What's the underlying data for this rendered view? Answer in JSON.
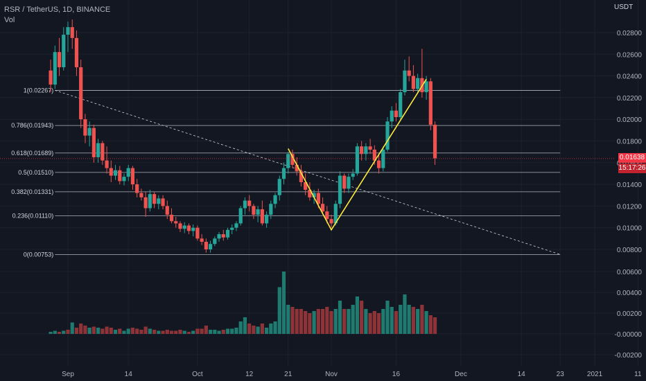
{
  "header": {
    "symbol": "RSR / TetherUS, 1D, BINANCE",
    "volume_label": "Vol",
    "currency": "USDT"
  },
  "price_tag": {
    "price": "0.01638",
    "countdown": "15:17:26"
  },
  "colors": {
    "bg": "#131722",
    "up": "#26a69a",
    "down": "#ef5350",
    "trend": "#ffeb3b",
    "fib": "#b2b5be"
  },
  "chart_data": {
    "type": "candlestick",
    "y_axis": {
      "ticks": [
        "0.02800",
        "0.02600",
        "0.02400",
        "0.02200",
        "0.02000",
        "0.01800",
        "0.01600",
        "0.01400",
        "0.01200",
        "0.01000",
        "0.00800"
      ],
      "range": [
        0.007,
        0.0293
      ]
    },
    "volume_axis": {
      "ticks": [
        "0.00600",
        "0.00400",
        "0.00200",
        "-0.00000",
        "-0.00200"
      ]
    },
    "x_axis": {
      "ticks": [
        "Sep",
        "14",
        "Oct",
        "12",
        "21",
        "Nov",
        "16",
        "Dec",
        "14",
        "23",
        "2021",
        "11"
      ],
      "tick_days": [
        0,
        14,
        30,
        42,
        51,
        61,
        76,
        91,
        105,
        114,
        122,
        132
      ]
    },
    "fib_levels": [
      {
        "label": "1(0.02267)",
        "value": 0.02267
      },
      {
        "label": "0.786(0.01943)",
        "value": 0.01943
      },
      {
        "label": "0.618(0.01689)",
        "value": 0.01689
      },
      {
        "label": "0.5(0.01510)",
        "value": 0.0151
      },
      {
        "label": "0.382(0.01331)",
        "value": 0.01331
      },
      {
        "label": "0.236(0.01110)",
        "value": 0.0111
      },
      {
        "label": "0(0.00753)",
        "value": 0.00753
      }
    ],
    "fib_range_days": [
      -3,
      114
    ],
    "dashed_line": [
      [
        -3,
        0.02267
      ],
      [
        114,
        0.00753
      ]
    ],
    "trend_lines": [
      [
        [
          51,
          0.0173
        ],
        [
          61,
          0.0098
        ],
        [
          83,
          0.0237
        ]
      ]
    ],
    "candles": [
      [
        -4,
        0.0245,
        0.0255,
        0.0225,
        0.0232
      ],
      [
        -3,
        0.0232,
        0.0268,
        0.0228,
        0.0262
      ],
      [
        -2,
        0.0262,
        0.0275,
        0.024,
        0.0248
      ],
      [
        -1,
        0.0248,
        0.0285,
        0.0245,
        0.0278
      ],
      [
        0,
        0.0278,
        0.029,
        0.0262,
        0.0285
      ],
      [
        1,
        0.0285,
        0.0292,
        0.0265,
        0.0275
      ],
      [
        2,
        0.0275,
        0.0282,
        0.024,
        0.0248
      ],
      [
        3,
        0.0248,
        0.0255,
        0.0192,
        0.02
      ],
      [
        4,
        0.02,
        0.0205,
        0.0178,
        0.0185
      ],
      [
        5,
        0.0185,
        0.0198,
        0.0175,
        0.0192
      ],
      [
        6,
        0.0192,
        0.0195,
        0.016,
        0.0165
      ],
      [
        7,
        0.0165,
        0.0182,
        0.016,
        0.0178
      ],
      [
        8,
        0.0178,
        0.018,
        0.0158,
        0.0162
      ],
      [
        9,
        0.0162,
        0.0175,
        0.015,
        0.0155
      ],
      [
        10,
        0.0155,
        0.0162,
        0.0142,
        0.0148
      ],
      [
        11,
        0.0148,
        0.0158,
        0.0144,
        0.0153
      ],
      [
        12,
        0.0153,
        0.0157,
        0.014,
        0.0143
      ],
      [
        13,
        0.0143,
        0.015,
        0.0139,
        0.0147
      ],
      [
        14,
        0.0147,
        0.0158,
        0.0143,
        0.0155
      ],
      [
        15,
        0.0155,
        0.0157,
        0.0135,
        0.014
      ],
      [
        16,
        0.014,
        0.0145,
        0.0128,
        0.0132
      ],
      [
        17,
        0.0132,
        0.0136,
        0.0125,
        0.0128
      ],
      [
        18,
        0.0128,
        0.0133,
        0.011,
        0.0118
      ],
      [
        19,
        0.0118,
        0.0135,
        0.0115,
        0.0131
      ],
      [
        20,
        0.0131,
        0.0133,
        0.0118,
        0.0122
      ],
      [
        21,
        0.0122,
        0.013,
        0.0117,
        0.0127
      ],
      [
        22,
        0.0127,
        0.013,
        0.0117,
        0.012
      ],
      [
        23,
        0.012,
        0.0125,
        0.0108,
        0.0112
      ],
      [
        24,
        0.0112,
        0.0118,
        0.0104,
        0.0106
      ],
      [
        25,
        0.0106,
        0.011,
        0.01,
        0.0104
      ],
      [
        26,
        0.0104,
        0.0106,
        0.0096,
        0.0099
      ],
      [
        27,
        0.0099,
        0.0105,
        0.0095,
        0.0102
      ],
      [
        28,
        0.0102,
        0.0104,
        0.0094,
        0.0097
      ],
      [
        29,
        0.0097,
        0.0103,
        0.0092,
        0.01
      ],
      [
        30,
        0.01,
        0.0102,
        0.0088,
        0.009
      ],
      [
        31,
        0.009,
        0.0094,
        0.0084,
        0.0087
      ],
      [
        32,
        0.0087,
        0.009,
        0.0077,
        0.008
      ],
      [
        33,
        0.008,
        0.0088,
        0.0077,
        0.0085
      ],
      [
        34,
        0.0085,
        0.0092,
        0.0083,
        0.009
      ],
      [
        35,
        0.009,
        0.0096,
        0.0087,
        0.0094
      ],
      [
        36,
        0.0094,
        0.0098,
        0.0088,
        0.0091
      ],
      [
        37,
        0.0091,
        0.01,
        0.0089,
        0.0098
      ],
      [
        38,
        0.0098,
        0.0103,
        0.0094,
        0.01
      ],
      [
        39,
        0.01,
        0.0106,
        0.0097,
        0.0104
      ],
      [
        40,
        0.0104,
        0.012,
        0.0102,
        0.0118
      ],
      [
        41,
        0.0118,
        0.0128,
        0.0112,
        0.0125
      ],
      [
        42,
        0.0125,
        0.013,
        0.0115,
        0.012
      ],
      [
        43,
        0.012,
        0.0122,
        0.0108,
        0.0112
      ],
      [
        44,
        0.0112,
        0.012,
        0.0105,
        0.0117
      ],
      [
        45,
        0.0117,
        0.0125,
        0.0102,
        0.0104
      ],
      [
        46,
        0.0104,
        0.0115,
        0.01,
        0.0112
      ],
      [
        47,
        0.0112,
        0.0125,
        0.0108,
        0.0122
      ],
      [
        48,
        0.0122,
        0.0132,
        0.0118,
        0.013
      ],
      [
        49,
        0.013,
        0.0148,
        0.0125,
        0.0145
      ],
      [
        50,
        0.0145,
        0.016,
        0.014,
        0.0155
      ],
      [
        51,
        0.0155,
        0.017,
        0.015,
        0.0168
      ],
      [
        52,
        0.0168,
        0.0172,
        0.0155,
        0.0158
      ],
      [
        53,
        0.0158,
        0.0165,
        0.0148,
        0.0152
      ],
      [
        54,
        0.0152,
        0.0158,
        0.0138,
        0.0142
      ],
      [
        55,
        0.0142,
        0.015,
        0.013,
        0.0135
      ],
      [
        56,
        0.0135,
        0.0142,
        0.0125,
        0.0128
      ],
      [
        57,
        0.0128,
        0.0135,
        0.0122,
        0.0132
      ],
      [
        58,
        0.0132,
        0.0136,
        0.0118,
        0.0122
      ],
      [
        59,
        0.0122,
        0.0128,
        0.0112,
        0.0115
      ],
      [
        60,
        0.0115,
        0.012,
        0.0104,
        0.0108
      ],
      [
        61,
        0.0108,
        0.0112,
        0.01,
        0.0104
      ],
      [
        62,
        0.0104,
        0.0125,
        0.0102,
        0.0122
      ],
      [
        63,
        0.0122,
        0.0152,
        0.0118,
        0.0148
      ],
      [
        64,
        0.0148,
        0.015,
        0.0132,
        0.0136
      ],
      [
        65,
        0.0136,
        0.015,
        0.0132,
        0.0147
      ],
      [
        66,
        0.0147,
        0.0154,
        0.0144,
        0.015
      ],
      [
        67,
        0.015,
        0.0178,
        0.0148,
        0.0175
      ],
      [
        68,
        0.0175,
        0.018,
        0.0162,
        0.0168
      ],
      [
        69,
        0.0168,
        0.0178,
        0.0162,
        0.0175
      ],
      [
        70,
        0.0175,
        0.0182,
        0.0168,
        0.0172
      ],
      [
        71,
        0.0172,
        0.0176,
        0.0158,
        0.0162
      ],
      [
        72,
        0.0162,
        0.0168,
        0.015,
        0.0155
      ],
      [
        73,
        0.0155,
        0.0175,
        0.0152,
        0.0172
      ],
      [
        74,
        0.0172,
        0.0202,
        0.017,
        0.0198
      ],
      [
        75,
        0.0198,
        0.0212,
        0.0192,
        0.0208
      ],
      [
        76,
        0.0208,
        0.0215,
        0.0198,
        0.0202
      ],
      [
        77,
        0.0202,
        0.0228,
        0.02,
        0.0225
      ],
      [
        78,
        0.0225,
        0.0255,
        0.0222,
        0.0245
      ],
      [
        79,
        0.0245,
        0.0258,
        0.0235,
        0.024
      ],
      [
        80,
        0.024,
        0.025,
        0.0225,
        0.0228
      ],
      [
        81,
        0.0228,
        0.0242,
        0.0225,
        0.0238
      ],
      [
        82,
        0.0238,
        0.0265,
        0.022,
        0.0225
      ],
      [
        83,
        0.0225,
        0.024,
        0.0218,
        0.0235
      ],
      [
        84,
        0.0235,
        0.0238,
        0.019,
        0.0195
      ],
      [
        85,
        0.0195,
        0.0198,
        0.0158,
        0.0164
      ]
    ],
    "volume": [
      [
        -4,
        0.0002,
        1
      ],
      [
        -3,
        0.0003,
        1
      ],
      [
        -2,
        0.0002,
        0
      ],
      [
        -1,
        0.0003,
        1
      ],
      [
        0,
        0.0004,
        0
      ],
      [
        1,
        0.0011,
        1
      ],
      [
        2,
        0.0006,
        0
      ],
      [
        3,
        0.001,
        0
      ],
      [
        4,
        0.0008,
        0
      ],
      [
        5,
        0.0006,
        1
      ],
      [
        6,
        0.0007,
        0
      ],
      [
        7,
        0.0006,
        1
      ],
      [
        8,
        0.0005,
        0
      ],
      [
        9,
        0.0007,
        0
      ],
      [
        10,
        0.0006,
        0
      ],
      [
        11,
        0.0004,
        1
      ],
      [
        12,
        0.0005,
        0
      ],
      [
        13,
        0.0003,
        1
      ],
      [
        14,
        0.0005,
        1
      ],
      [
        15,
        0.0006,
        0
      ],
      [
        16,
        0.0005,
        0
      ],
      [
        17,
        0.0004,
        0
      ],
      [
        18,
        0.0007,
        0
      ],
      [
        19,
        0.0005,
        1
      ],
      [
        20,
        0.0004,
        0
      ],
      [
        21,
        0.0003,
        1
      ],
      [
        22,
        0.0003,
        0
      ],
      [
        23,
        0.0004,
        0
      ],
      [
        24,
        0.0003,
        0
      ],
      [
        25,
        0.0003,
        0
      ],
      [
        26,
        0.0004,
        0
      ],
      [
        27,
        0.0003,
        1
      ],
      [
        28,
        0.0002,
        0
      ],
      [
        29,
        0.0003,
        1
      ],
      [
        30,
        0.0005,
        0
      ],
      [
        31,
        0.0005,
        0
      ],
      [
        32,
        0.0008,
        0
      ],
      [
        33,
        0.0004,
        1
      ],
      [
        34,
        0.0004,
        1
      ],
      [
        35,
        0.0003,
        1
      ],
      [
        36,
        0.0004,
        0
      ],
      [
        37,
        0.0005,
        1
      ],
      [
        38,
        0.0005,
        1
      ],
      [
        39,
        0.0006,
        1
      ],
      [
        40,
        0.0012,
        1
      ],
      [
        41,
        0.0016,
        1
      ],
      [
        42,
        0.001,
        0
      ],
      [
        43,
        0.0008,
        0
      ],
      [
        44,
        0.0007,
        1
      ],
      [
        45,
        0.001,
        0
      ],
      [
        46,
        0.0006,
        1
      ],
      [
        47,
        0.001,
        1
      ],
      [
        48,
        0.0012,
        1
      ],
      [
        49,
        0.0045,
        1
      ],
      [
        50,
        0.006,
        1
      ],
      [
        51,
        0.0028,
        1
      ],
      [
        52,
        0.0026,
        0
      ],
      [
        53,
        0.0024,
        0
      ],
      [
        54,
        0.0024,
        0
      ],
      [
        55,
        0.0022,
        0
      ],
      [
        56,
        0.002,
        0
      ],
      [
        57,
        0.0022,
        1
      ],
      [
        58,
        0.0024,
        0
      ],
      [
        59,
        0.0024,
        0
      ],
      [
        60,
        0.0026,
        0
      ],
      [
        61,
        0.0022,
        0
      ],
      [
        62,
        0.0024,
        1
      ],
      [
        63,
        0.0032,
        1
      ],
      [
        64,
        0.0024,
        0
      ],
      [
        65,
        0.0024,
        1
      ],
      [
        66,
        0.0028,
        1
      ],
      [
        67,
        0.0036,
        1
      ],
      [
        68,
        0.0032,
        0
      ],
      [
        69,
        0.0024,
        1
      ],
      [
        70,
        0.002,
        0
      ],
      [
        71,
        0.0022,
        0
      ],
      [
        72,
        0.002,
        0
      ],
      [
        73,
        0.0024,
        1
      ],
      [
        74,
        0.0032,
        1
      ],
      [
        75,
        0.0026,
        1
      ],
      [
        76,
        0.0022,
        0
      ],
      [
        77,
        0.0028,
        1
      ],
      [
        78,
        0.0038,
        1
      ],
      [
        79,
        0.0028,
        1
      ],
      [
        80,
        0.0026,
        0
      ],
      [
        81,
        0.0024,
        1
      ],
      [
        82,
        0.0028,
        0
      ],
      [
        83,
        0.0022,
        1
      ],
      [
        84,
        0.0018,
        0
      ],
      [
        85,
        0.0016,
        0
      ]
    ]
  }
}
